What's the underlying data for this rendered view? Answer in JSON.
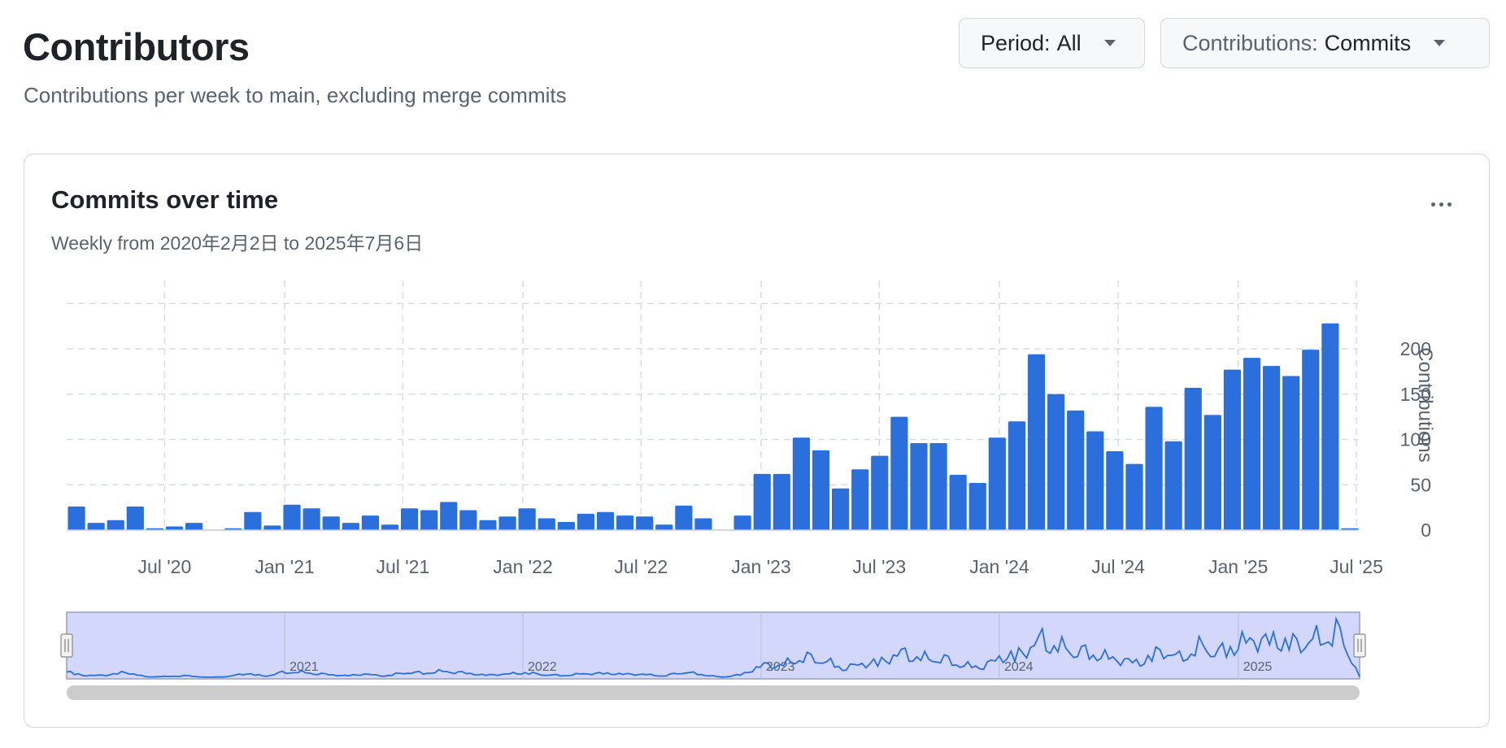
{
  "header": {
    "title": "Contributors",
    "subtitle": "Contributions per week to main, excluding merge commits"
  },
  "filters": {
    "period_key": "Period:",
    "period_value": "All",
    "contrib_key": "Contributions:",
    "contrib_value": "Commits"
  },
  "card": {
    "title": "Commits over time",
    "subtitle": "Weekly from 2020年2月2日 to 2025年7月6日",
    "menu_icon": "kebab-horizontal-icon"
  },
  "colors": {
    "bar": "#2a6fdb",
    "navigator_fill": "#d2d7fb",
    "navigator_line": "#2a6fdb",
    "grid": "#d8dee4"
  },
  "chart_data": {
    "type": "bar",
    "title": "Commits over time",
    "ylabel": "Contributions",
    "ylim": [
      0,
      250
    ],
    "y_ticks": [
      0,
      50,
      100,
      150,
      200
    ],
    "x_ticks": [
      "Jul '20",
      "Jan '21",
      "Jul '21",
      "Jan '22",
      "Jul '22",
      "Jan '23",
      "Jul '23",
      "Jan '24",
      "Jul '24",
      "Jan '25",
      "Jul '25"
    ],
    "x_tick_dates": [
      "2020-07-01",
      "2021-01-01",
      "2021-07-01",
      "2022-01-01",
      "2022-07-01",
      "2023-01-01",
      "2023-07-01",
      "2024-01-01",
      "2024-07-01",
      "2025-01-01",
      "2025-07-01"
    ],
    "x_range": [
      "2020-02-02",
      "2025-07-06"
    ],
    "values": [
      26,
      8,
      11,
      26,
      2,
      4,
      8,
      0,
      2,
      20,
      5,
      28,
      24,
      15,
      8,
      16,
      6,
      24,
      22,
      31,
      22,
      11,
      15,
      24,
      13,
      9,
      18,
      20,
      16,
      15,
      6,
      27,
      13,
      0,
      16,
      62,
      62,
      102,
      88,
      46,
      67,
      82,
      125,
      96,
      96,
      61,
      52,
      102,
      120,
      194,
      150,
      132,
      109,
      87,
      73,
      136,
      98,
      157,
      127,
      177,
      190,
      181,
      170,
      199,
      228,
      2
    ],
    "navigator": {
      "year_labels": [
        "2021",
        "2022",
        "2023",
        "2024",
        "2025"
      ]
    }
  }
}
